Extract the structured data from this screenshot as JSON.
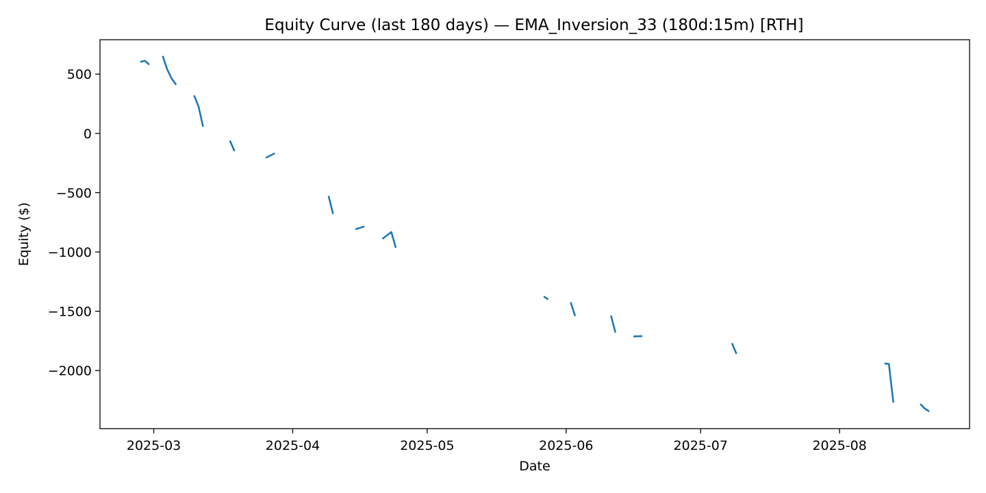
{
  "chart_data": {
    "type": "line",
    "title": "Equity Curve (last 180 days) — EMA_Inversion_33 (180d:15m) [RTH]",
    "xlabel": "Date",
    "ylabel": "Equity ($)",
    "x_ticks": [
      "2025-03",
      "2025-04",
      "2025-05",
      "2025-06",
      "2025-07",
      "2025-08"
    ],
    "y_ticks": [
      {
        "value": 500,
        "label": "500"
      },
      {
        "value": 0,
        "label": "0"
      },
      {
        "value": -500,
        "label": "−500"
      },
      {
        "value": -1000,
        "label": "−1000"
      },
      {
        "value": -1500,
        "label": "−1500"
      },
      {
        "value": -2000,
        "label": "−2000"
      }
    ],
    "xlim": [
      "2025-02-17",
      "2025-08-30"
    ],
    "ylim": [
      -2490,
      790
    ],
    "grid": false,
    "legend": "none",
    "line_color": "#1f77b4",
    "series": [
      {
        "segments": [
          [
            [
              "2025-02-26",
              603
            ],
            [
              "2025-02-27",
              612
            ],
            [
              "2025-02-28",
              580
            ]
          ],
          [
            [
              "2025-03-03",
              653
            ],
            [
              "2025-03-04",
              540
            ],
            [
              "2025-03-05",
              462
            ],
            [
              "2025-03-06",
              410
            ]
          ],
          [
            [
              "2025-03-10",
              320
            ],
            [
              "2025-03-11",
              226
            ],
            [
              "2025-03-12",
              56
            ]
          ],
          [
            [
              "2025-03-18",
              -60
            ],
            [
              "2025-03-19",
              -150
            ]
          ],
          [
            [
              "2025-03-26",
              -206
            ],
            [
              "2025-03-28",
              -168
            ]
          ],
          [
            [
              "2025-04-09",
              -528
            ],
            [
              "2025-04-10",
              -680
            ]
          ],
          [
            [
              "2025-04-15",
              -808
            ],
            [
              "2025-04-17",
              -785
            ]
          ],
          [
            [
              "2025-04-21",
              -890
            ],
            [
              "2025-04-23",
              -832
            ],
            [
              "2025-04-24",
              -965
            ]
          ],
          [
            [
              "2025-05-27",
              -1375
            ],
            [
              "2025-05-28",
              -1400
            ]
          ],
          [
            [
              "2025-06-02",
              -1424
            ],
            [
              "2025-06-03",
              -1540
            ]
          ],
          [
            [
              "2025-06-11",
              -1536
            ],
            [
              "2025-06-12",
              -1680
            ]
          ],
          [
            [
              "2025-06-16",
              -1712
            ],
            [
              "2025-06-18",
              -1710
            ]
          ],
          [
            [
              "2025-07-08",
              -1770
            ],
            [
              "2025-07-09",
              -1860
            ]
          ],
          [
            [
              "2025-08-11",
              -1940
            ],
            [
              "2025-08-12",
              -1945
            ],
            [
              "2025-08-13",
              -2270
            ]
          ],
          [
            [
              "2025-08-19",
              -2282
            ],
            [
              "2025-08-20",
              -2320
            ],
            [
              "2025-08-21",
              -2345
            ]
          ]
        ]
      }
    ]
  }
}
